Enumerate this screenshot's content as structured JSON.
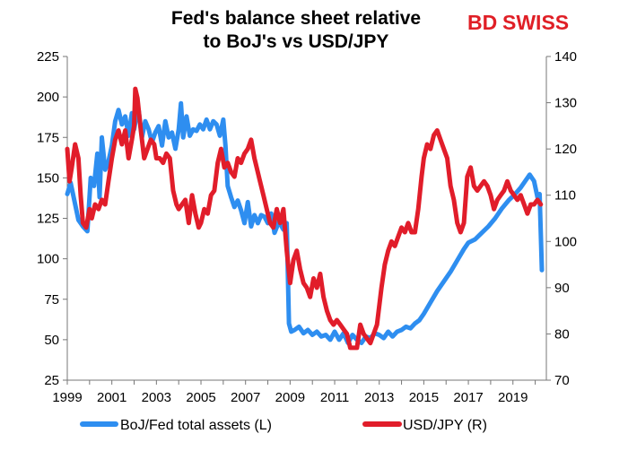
{
  "chart_data": {
    "type": "line",
    "title": [
      "Fed's balance sheet relative",
      "to BoJ's vs USD/JPY"
    ],
    "xlabel": "",
    "ylabel_left": "",
    "ylabel_right": "",
    "xlim": [
      1999,
      2020.5
    ],
    "ylim_left": [
      25,
      225
    ],
    "ylim_right": [
      70,
      140
    ],
    "x_ticks": [
      "1999",
      "2001",
      "2003",
      "2005",
      "2007",
      "2009",
      "2011",
      "2013",
      "2015",
      "2017",
      "2019"
    ],
    "y_ticks_left": [
      "225",
      "200",
      "175",
      "150",
      "125",
      "100",
      "75",
      "50",
      "25"
    ],
    "y_ticks_right": [
      "140",
      "130",
      "120",
      "110",
      "100",
      "90",
      "80",
      "70"
    ],
    "grid": false,
    "legend_position": "bottom",
    "series": [
      {
        "name": "BoJ/Fed total assets (L)",
        "axis": "left",
        "color": "#2e8ef0",
        "x": [
          1999.0,
          1999.15,
          1999.3,
          1999.5,
          1999.7,
          1999.9,
          2000.05,
          2000.2,
          2000.35,
          2000.45,
          2000.55,
          2000.7,
          2000.85,
          2001.0,
          2001.15,
          2001.3,
          2001.45,
          2001.6,
          2001.75,
          2001.9,
          2002.0,
          2002.1,
          2002.2,
          2002.35,
          2002.5,
          2002.65,
          2002.8,
          2002.95,
          2003.1,
          2003.25,
          2003.4,
          2003.55,
          2003.7,
          2003.85,
          2004.0,
          2004.1,
          2004.2,
          2004.35,
          2004.5,
          2004.65,
          2004.8,
          2004.95,
          2005.1,
          2005.25,
          2005.4,
          2005.55,
          2005.7,
          2005.85,
          2006.0,
          2006.1,
          2006.2,
          2006.35,
          2006.5,
          2006.65,
          2006.8,
          2006.95,
          2007.1,
          2007.25,
          2007.4,
          2007.55,
          2007.7,
          2007.85,
          2008.0,
          2008.15,
          2008.3,
          2008.5,
          2008.7,
          2008.85,
          2008.95,
          2009.05,
          2009.2,
          2009.4,
          2009.6,
          2009.8,
          2010.0,
          2010.2,
          2010.4,
          2010.6,
          2010.8,
          2011.0,
          2011.2,
          2011.4,
          2011.6,
          2011.8,
          2012.0,
          2012.2,
          2012.4,
          2012.6,
          2012.8,
          2013.0,
          2013.2,
          2013.4,
          2013.6,
          2013.8,
          2014.0,
          2014.2,
          2014.4,
          2014.6,
          2014.8,
          2015.0,
          2015.3,
          2015.6,
          2015.9,
          2016.2,
          2016.5,
          2016.8,
          2017.0,
          2017.3,
          2017.6,
          2017.9,
          2018.2,
          2018.5,
          2018.8,
          2019.1,
          2019.35,
          2019.55,
          2019.75,
          2019.95,
          2020.1,
          2020.2,
          2020.3
        ],
        "values": [
          140,
          147,
          137,
          124,
          120,
          117,
          150,
          145,
          165,
          138,
          175,
          155,
          160,
          170,
          185,
          192,
          183,
          188,
          176,
          190,
          180,
          188,
          192,
          175,
          185,
          180,
          172,
          178,
          182,
          170,
          185,
          175,
          178,
          168,
          180,
          196,
          175,
          188,
          176,
          180,
          179,
          183,
          180,
          186,
          180,
          185,
          183,
          176,
          186,
          170,
          145,
          138,
          132,
          136,
          130,
          122,
          135,
          120,
          127,
          122,
          127,
          126,
          122,
          128,
          116,
          123,
          118,
          122,
          60,
          55,
          56,
          58,
          54,
          56,
          53,
          55,
          52,
          53,
          50,
          55,
          50,
          54,
          48,
          53,
          50,
          48,
          52,
          51,
          54,
          53,
          51,
          55,
          52,
          55,
          56,
          58,
          57,
          60,
          62,
          66,
          73,
          80,
          86,
          92,
          99,
          106,
          110,
          112,
          116,
          120,
          125,
          131,
          136,
          140,
          144,
          148,
          152,
          148,
          138,
          140,
          93
        ]
      },
      {
        "name": "USD/JPY (R)",
        "axis": "right",
        "color": "#e11d2a",
        "x": [
          1999.0,
          1999.1,
          1999.2,
          1999.35,
          1999.5,
          1999.6,
          1999.7,
          1999.85,
          2000.0,
          2000.1,
          2000.25,
          2000.4,
          2000.55,
          2000.7,
          2000.85,
          2001.0,
          2001.15,
          2001.3,
          2001.45,
          2001.6,
          2001.75,
          2001.9,
          2002.0,
          2002.05,
          2002.15,
          2002.3,
          2002.45,
          2002.6,
          2002.75,
          2002.9,
          2003.0,
          2003.15,
          2003.3,
          2003.45,
          2003.6,
          2003.75,
          2003.9,
          2004.0,
          2004.15,
          2004.3,
          2004.45,
          2004.6,
          2004.75,
          2004.9,
          2005.0,
          2005.15,
          2005.3,
          2005.45,
          2005.6,
          2005.75,
          2005.9,
          2006.05,
          2006.2,
          2006.35,
          2006.5,
          2006.65,
          2006.8,
          2006.95,
          2007.1,
          2007.25,
          2007.4,
          2007.5,
          2007.65,
          2007.8,
          2007.95,
          2008.1,
          2008.25,
          2008.4,
          2008.55,
          2008.7,
          2008.85,
          2009.0,
          2009.15,
          2009.3,
          2009.45,
          2009.6,
          2009.75,
          2009.9,
          2010.05,
          2010.2,
          2010.35,
          2010.5,
          2010.65,
          2010.8,
          2010.95,
          2011.1,
          2011.25,
          2011.4,
          2011.55,
          2011.7,
          2011.85,
          2012.0,
          2012.15,
          2012.3,
          2012.45,
          2012.6,
          2012.75,
          2012.9,
          2013.0,
          2013.1,
          2013.25,
          2013.4,
          2013.55,
          2013.7,
          2013.85,
          2014.0,
          2014.15,
          2014.3,
          2014.45,
          2014.6,
          2014.75,
          2014.9,
          2015.0,
          2015.15,
          2015.3,
          2015.45,
          2015.6,
          2015.75,
          2015.9,
          2016.05,
          2016.2,
          2016.35,
          2016.5,
          2016.65,
          2016.8,
          2016.95,
          2017.1,
          2017.25,
          2017.4,
          2017.55,
          2017.7,
          2017.85,
          2018.0,
          2018.15,
          2018.3,
          2018.45,
          2018.6,
          2018.75,
          2018.9,
          2019.05,
          2019.2,
          2019.35,
          2019.5,
          2019.65,
          2019.8,
          2019.95,
          2020.1,
          2020.25
        ],
        "values": [
          120,
          113,
          116,
          121,
          118,
          110,
          104,
          103,
          107,
          105,
          108,
          107,
          109,
          108,
          113,
          118,
          122,
          124,
          121,
          124,
          118,
          122,
          125,
          133,
          131,
          124,
          118,
          120,
          122,
          121,
          118,
          118,
          117,
          119,
          118,
          111,
          108,
          107,
          108,
          109,
          104,
          110,
          106,
          103,
          104,
          107,
          106,
          110,
          111,
          117,
          120,
          116,
          117,
          115,
          114,
          118,
          117,
          119,
          120,
          122,
          118,
          116,
          113,
          110,
          107,
          104,
          103,
          107,
          104,
          107,
          98,
          91,
          96,
          98,
          94,
          91,
          90,
          88,
          92,
          90,
          93,
          88,
          85,
          83,
          82,
          83,
          82,
          81,
          80,
          77,
          77,
          77,
          82,
          80,
          79,
          78,
          80,
          82,
          86,
          90,
          95,
          98,
          100,
          99,
          101,
          103,
          102,
          104,
          102,
          102,
          107,
          114,
          118,
          121,
          120,
          123,
          124,
          122,
          120,
          118,
          112,
          109,
          104,
          102,
          104,
          114,
          116,
          112,
          111,
          112,
          113,
          112,
          110,
          107,
          109,
          110,
          111,
          113,
          111,
          110,
          109,
          110,
          108,
          106,
          108,
          108,
          109,
          108
        ]
      }
    ]
  },
  "logo": {
    "part1": "BD",
    "part2": "SWISS"
  }
}
